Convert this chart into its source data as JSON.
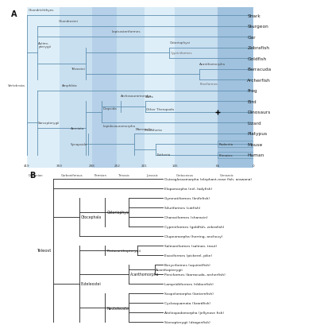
{
  "panel_A": {
    "taxa": [
      "Shark",
      "Sturgeon",
      "Gar",
      "Zebrafish",
      "Goldfish",
      "Barracuda",
      "Archerfish",
      "Frog",
      "Bird",
      "Dinosaurs",
      "Lizard",
      "Platypus",
      "Mouse",
      "Human"
    ],
    "time_points": [
      419,
      359,
      298,
      252,
      201,
      145,
      65,
      0
    ],
    "time_labels": [
      "419",
      "359",
      "298",
      "252",
      "201",
      "145",
      "65",
      "0"
    ],
    "period_labels": [
      "Devonian",
      "Carboniferous",
      "Permian",
      "Triassic",
      "Jurassic",
      "Cretaceous",
      "Cenozoic",
      ""
    ]
  },
  "panel_B": {
    "leaves": [
      "Osteoglossomorpha (elephant-nose fish, arawana)",
      "Elopomorpha (eel, ladyfish)",
      "Gymnotiformes (knifefish)",
      "Siluriformes (catfish)",
      "Characiformes (characin)",
      "Cypriniformes (goldfish, zebrafish)",
      "Clupeomorpha (herring, anchovy)",
      "Salmoniformes (salmon, trout)",
      "Esociformes (pickerel, pike)",
      "Beryciformes (squirrelfish)",
      "Perciformes (barracuda, archerfish)",
      "Lampridiiformes (ribbonfish)",
      "Scopelomorpha (lanternfish)",
      "Cyclosquamata (lizardfish)",
      "Ateleopodomorpha (jellynose fish)",
      "Stenopterygii (dragonfish)"
    ]
  },
  "colors": {
    "bg_light": "#ddeef8",
    "bg_med1": "#c8dff0",
    "bg_med2": "#b5d0e8",
    "bg_dark": "#a0c2de",
    "line": "#6090b0",
    "text": "#333333"
  }
}
